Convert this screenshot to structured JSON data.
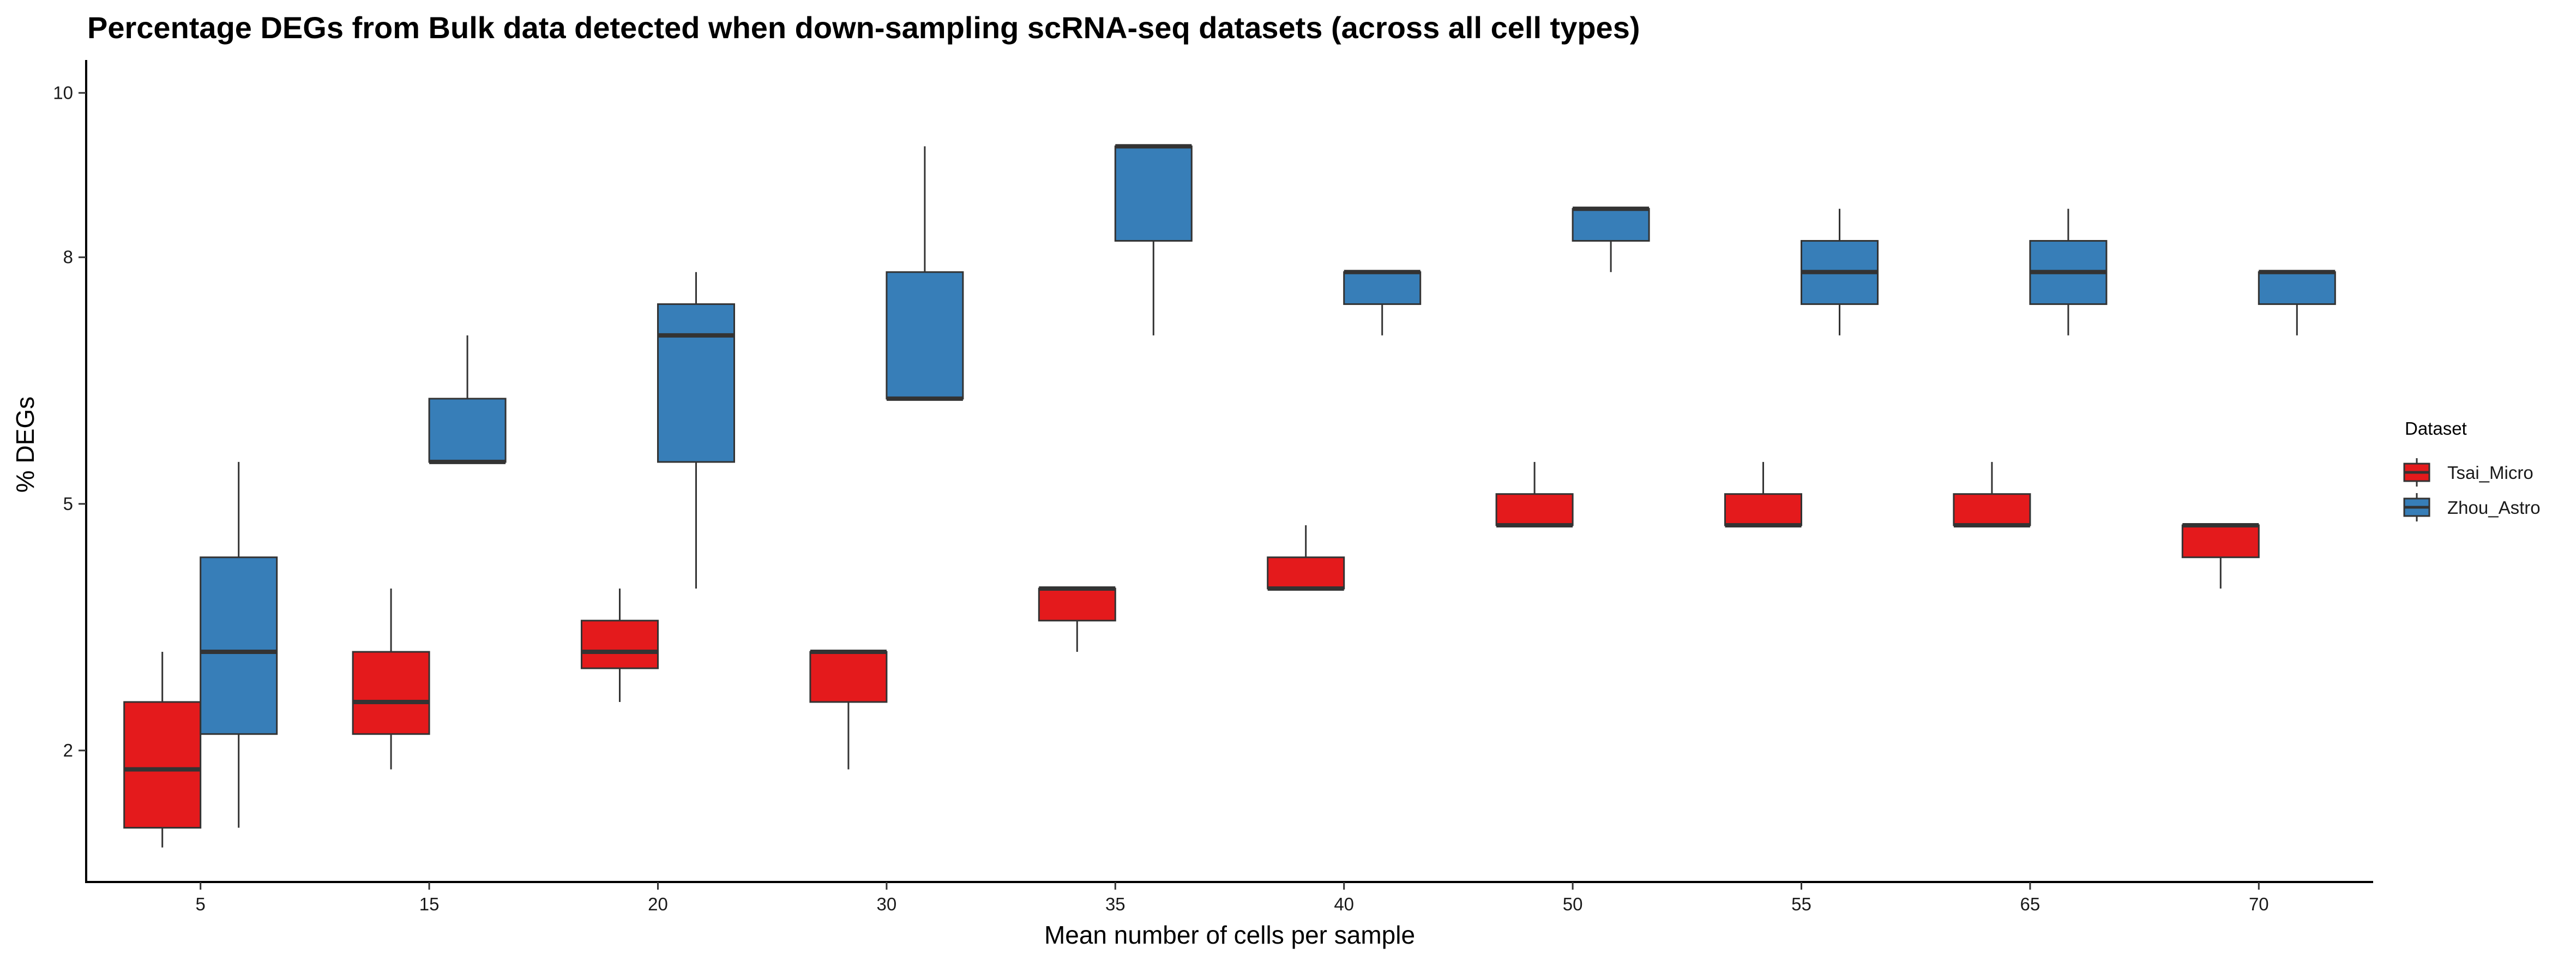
{
  "chart_data": {
    "type": "boxplot",
    "title": "Percentage DEGs from Bulk data detected when down-sampling scRNA-seq datasets (across all cell types)",
    "xlabel": "Mean number of cells per sample",
    "ylabel": "% DEGs",
    "categories": [
      "5",
      "15",
      "20",
      "30",
      "35",
      "40",
      "50",
      "55",
      "65",
      "70"
    ],
    "yticks": [
      {
        "label": "2",
        "value": 2
      },
      {
        "label": "5",
        "value": 5
      },
      {
        "label": "8",
        "value": 8
      },
      {
        "label": "10",
        "value": 10
      }
    ],
    "ylim": [
      0.4,
      10.4
    ],
    "legend": {
      "title": "Dataset",
      "position": "right"
    },
    "grid": false,
    "series": [
      {
        "name": "Tsai_Micro",
        "color": "#E41A1C",
        "boxes": [
          {
            "min": 0.82,
            "q1": 1.06,
            "median": 1.77,
            "q3": 2.59,
            "max": 3.2
          },
          {
            "min": 1.77,
            "q1": 2.2,
            "median": 2.59,
            "q3": 3.2,
            "max": 3.97
          },
          {
            "min": 2.59,
            "q1": 3.0,
            "median": 3.2,
            "q3": 3.58,
            "max": 3.97
          },
          {
            "min": 1.77,
            "q1": 2.59,
            "median": 3.2,
            "q3": 3.2,
            "max": 3.2
          },
          {
            "min": 3.2,
            "q1": 3.58,
            "median": 3.97,
            "q3": 3.97,
            "max": 3.97
          },
          {
            "min": 3.97,
            "q1": 3.97,
            "median": 3.97,
            "q3": 4.35,
            "max": 4.74
          },
          {
            "min": 4.74,
            "q1": 4.74,
            "median": 4.74,
            "q3": 5.12,
            "max": 5.51
          },
          {
            "min": 4.74,
            "q1": 4.74,
            "median": 4.74,
            "q3": 5.12,
            "max": 5.51
          },
          {
            "min": 4.74,
            "q1": 4.74,
            "median": 4.74,
            "q3": 5.12,
            "max": 5.51
          },
          {
            "min": 3.97,
            "q1": 4.35,
            "median": 4.74,
            "q3": 4.74,
            "max": 4.74
          }
        ]
      },
      {
        "name": "Zhou_Astro",
        "color": "#377EB8",
        "boxes": [
          {
            "min": 1.06,
            "q1": 2.2,
            "median": 3.2,
            "q3": 4.35,
            "max": 5.51
          },
          {
            "min": 5.51,
            "q1": 5.51,
            "median": 5.51,
            "q3": 6.28,
            "max": 7.05
          },
          {
            "min": 3.97,
            "q1": 5.51,
            "median": 7.05,
            "q3": 7.43,
            "max": 7.82
          },
          {
            "min": 6.28,
            "q1": 6.28,
            "median": 6.28,
            "q3": 7.82,
            "max": 9.35
          },
          {
            "min": 7.05,
            "q1": 8.2,
            "median": 9.35,
            "q3": 9.35,
            "max": 9.35
          },
          {
            "min": 7.05,
            "q1": 7.43,
            "median": 7.82,
            "q3": 7.82,
            "max": 7.82
          },
          {
            "min": 7.82,
            "q1": 8.2,
            "median": 8.59,
            "q3": 8.59,
            "max": 8.59
          },
          {
            "min": 7.05,
            "q1": 7.43,
            "median": 7.82,
            "q3": 8.2,
            "max": 8.59
          },
          {
            "min": 7.05,
            "q1": 7.43,
            "median": 7.82,
            "q3": 8.2,
            "max": 8.59
          },
          {
            "min": 7.05,
            "q1": 7.43,
            "median": 7.82,
            "q3": 7.82,
            "max": 7.82
          }
        ]
      }
    ]
  }
}
